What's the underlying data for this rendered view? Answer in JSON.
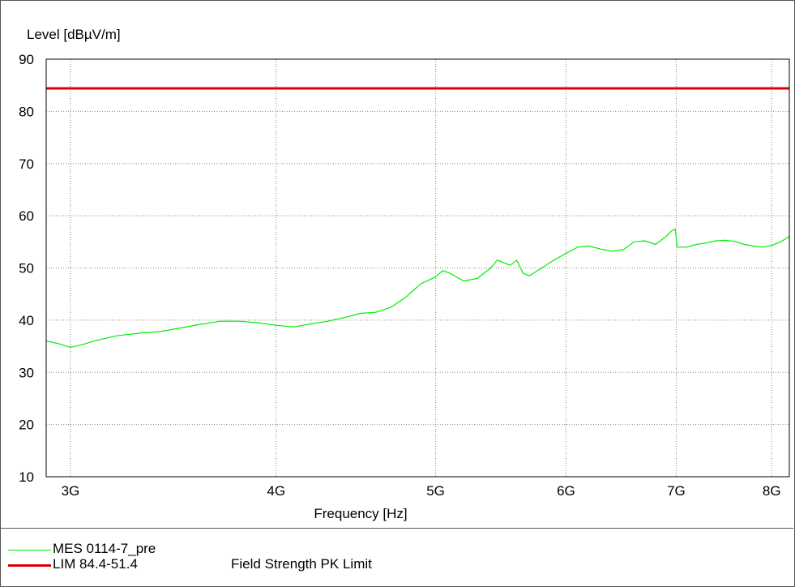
{
  "chart_data": {
    "type": "line",
    "ylabel": "Level [dBµV/m]",
    "xlabel": "Frequency [Hz]",
    "xscale": "log",
    "xlim": [
      2900000000,
      8200000000
    ],
    "ylim": [
      10,
      90
    ],
    "yticks": [
      10,
      20,
      30,
      40,
      50,
      60,
      70,
      80,
      90
    ],
    "xticks": [
      {
        "value": 3000000000,
        "label": "3G"
      },
      {
        "value": 4000000000,
        "label": "4G"
      },
      {
        "value": 5000000000,
        "label": "5G"
      },
      {
        "value": 6000000000,
        "label": "6G"
      },
      {
        "value": 7000000000,
        "label": "7G"
      },
      {
        "value": 8000000000,
        "label": "8G"
      }
    ],
    "grid": true,
    "series": [
      {
        "name": "MES  0114-7_pre",
        "color": "#00ee00",
        "x": [
          2900000000,
          2950000000,
          3000000000,
          3050000000,
          3100000000,
          3200000000,
          3300000000,
          3400000000,
          3500000000,
          3600000000,
          3700000000,
          3800000000,
          3900000000,
          4000000000,
          4100000000,
          4200000000,
          4300000000,
          4400000000,
          4500000000,
          4600000000,
          4700000000,
          4800000000,
          4850000000,
          4900000000,
          5000000000,
          5050000000,
          5100000000,
          5200000000,
          5300000000,
          5400000000,
          5450000000,
          5500000000,
          5550000000,
          5600000000,
          5650000000,
          5700000000,
          5800000000,
          5900000000,
          6000000000,
          6100000000,
          6200000000,
          6300000000,
          6400000000,
          6500000000,
          6600000000,
          6700000000,
          6800000000,
          6900000000,
          6950000000,
          6990000000,
          7010000000,
          7100000000,
          7200000000,
          7300000000,
          7400000000,
          7500000000,
          7600000000,
          7700000000,
          7800000000,
          7900000000,
          8000000000,
          8100000000,
          8200000000
        ],
        "y": [
          36,
          35.5,
          34.8,
          35.3,
          36,
          37,
          37.5,
          37.8,
          38.5,
          39.2,
          39.8,
          39.8,
          39.5,
          39,
          38.7,
          39.3,
          39.8,
          40.5,
          41.3,
          41.5,
          42.5,
          44.5,
          45.8,
          47,
          48.3,
          49.5,
          49,
          47.5,
          48,
          50,
          51.5,
          51,
          50.5,
          51.5,
          49,
          48.5,
          50,
          51.5,
          52.8,
          54,
          54.2,
          53.6,
          53.2,
          53.5,
          55,
          55.2,
          54.5,
          56,
          57,
          57.5,
          54,
          54,
          54.5,
          54.8,
          55.2,
          55.3,
          55.1,
          54.5,
          54.2,
          54,
          54.3,
          55,
          56
        ]
      },
      {
        "name": "LIM  84.4-51.4",
        "label": "Field Strength PK Limit",
        "color": "#dd0000",
        "x": [
          2900000000,
          8200000000
        ],
        "y": [
          84.4,
          84.4
        ]
      }
    ]
  }
}
